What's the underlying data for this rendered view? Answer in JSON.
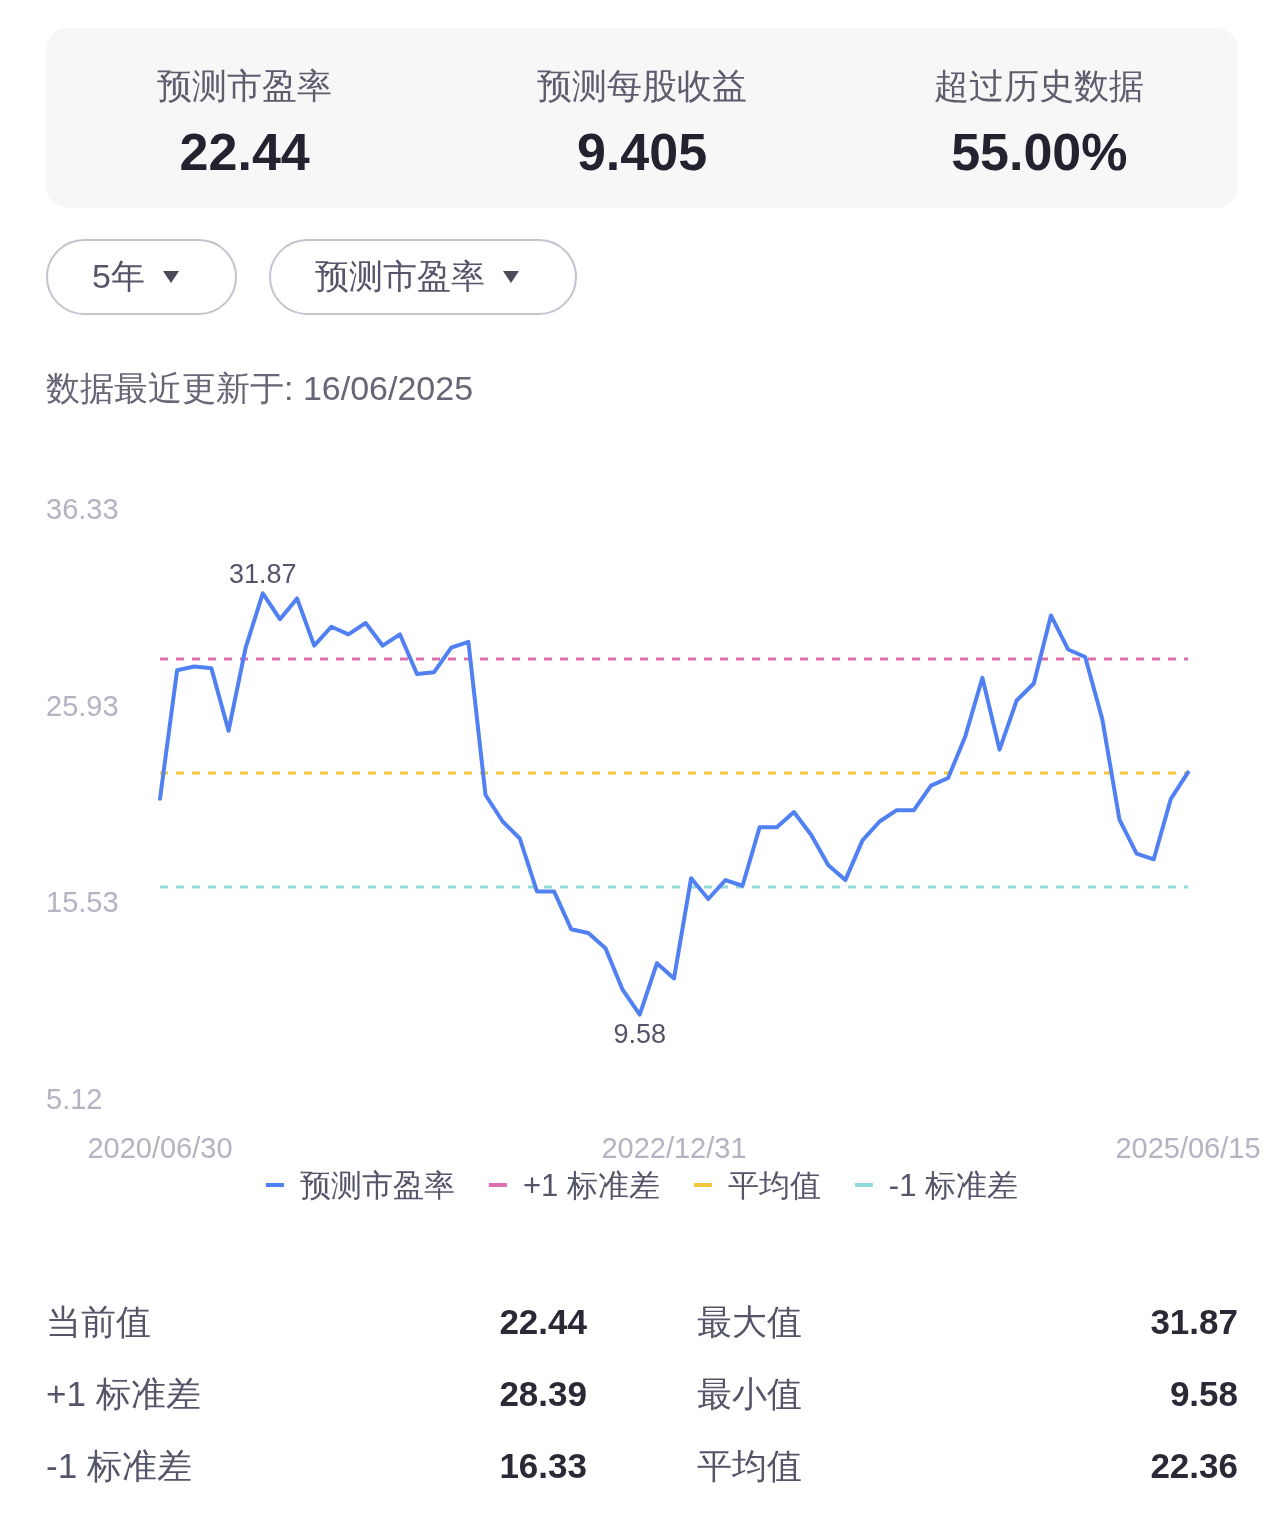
{
  "chart_data": [
    {
      "type": "other",
      "annotations": [
        "预测市盈率",
        "22.44",
        "预测每股收益",
        "9.405",
        "超过历史数据",
        "55.00%"
      ]
    },
    {
      "type": "other",
      "annotations": [
        "5年",
        "预测市盈率"
      ]
    },
    {
      "type": "line",
      "subtitle": "数据最近更新于: 16/06/2025",
      "categories": [
        "2020/06/30",
        null,
        null,
        null,
        null,
        null,
        null,
        null,
        null,
        null,
        null,
        null,
        null,
        null,
        null,
        null,
        null,
        null,
        null,
        null,
        null,
        null,
        null,
        null,
        null,
        null,
        null,
        null,
        null,
        null,
        "2022/12/31",
        null,
        null,
        null,
        null,
        null,
        null,
        null,
        null,
        null,
        null,
        null,
        null,
        null,
        null,
        null,
        null,
        null,
        null,
        null,
        null,
        null,
        null,
        null,
        null,
        null,
        null,
        null,
        null,
        null,
        "2025/06/15"
      ],
      "series": [
        {
          "name": "预测市盈率",
          "color": "#5080f2",
          "values": [
            21.0,
            27.8,
            28.0,
            27.9,
            24.6,
            29.0,
            31.87,
            30.5,
            31.6,
            29.1,
            30.1,
            29.7,
            30.3,
            29.1,
            29.7,
            27.6,
            27.7,
            29.0,
            29.3,
            21.2,
            19.8,
            18.9,
            16.1,
            16.1,
            14.1,
            13.9,
            13.1,
            10.9,
            9.58,
            12.3,
            11.5,
            16.8,
            15.7,
            16.7,
            16.4,
            19.5,
            19.5,
            20.3,
            19.1,
            17.5,
            16.7,
            18.8,
            19.8,
            20.4,
            20.4,
            21.7,
            22.1,
            24.3,
            27.4,
            23.6,
            26.2,
            27.1,
            30.7,
            28.9,
            28.5,
            25.2,
            19.9,
            18.1,
            17.8,
            21.0,
            22.4
          ],
          "value_labels": [
            null,
            null,
            null,
            null,
            null,
            null,
            "31.87",
            null,
            null,
            null,
            null,
            null,
            null,
            null,
            null,
            null,
            null,
            null,
            null,
            null,
            null,
            null,
            null,
            null,
            null,
            null,
            null,
            null,
            "9.58",
            null,
            null,
            null,
            null,
            null,
            null,
            null,
            null,
            null,
            null,
            null,
            null,
            null,
            null,
            null,
            null,
            null,
            null,
            null,
            null,
            null,
            null,
            null,
            null,
            null,
            null,
            null,
            null,
            null,
            null,
            null,
            null
          ]
        }
      ],
      "ylim": [
        5.12,
        36.33
      ],
      "yticks": [
        5.12,
        15.53,
        25.93,
        36.33
      ],
      "ref_lines": [
        {
          "axis": "y",
          "value": 28.39,
          "label": "+1 标准差",
          "color": "#de6fae",
          "line_style": "dashed"
        },
        {
          "axis": "y",
          "value": 22.36,
          "label": "平均值",
          "color": "#f4c63d",
          "line_style": "dashed"
        },
        {
          "axis": "y",
          "value": 16.33,
          "label": "-1 标准差",
          "color": "#92dcd8",
          "line_style": "dashed"
        }
      ],
      "legend": "bottom"
    },
    {
      "type": "other",
      "annotations": [
        "当前值",
        "22.44",
        "最大值",
        "31.87",
        "+1 标准差",
        "28.39",
        "最小值",
        "9.58",
        "-1 标准差",
        "16.33",
        "平均值",
        "22.36"
      ]
    }
  ]
}
